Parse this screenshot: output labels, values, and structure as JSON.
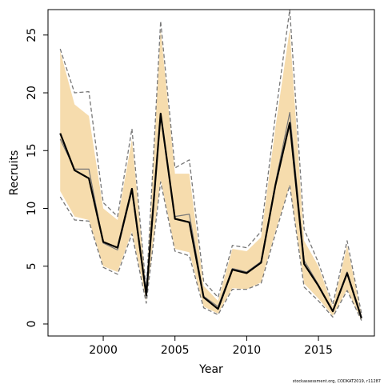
{
  "chart_data": {
    "type": "line",
    "x_label": "Year",
    "y_label": "Recruits",
    "footnote": "stockassessment.org, CODKAT2019, r11287",
    "x": [
      1997,
      1998,
      1999,
      2000,
      2001,
      2002,
      2003,
      2004,
      2005,
      2006,
      2007,
      2008,
      2009,
      2010,
      2011,
      2012,
      2013,
      2014,
      2015,
      2016,
      2017,
      2018
    ],
    "band": {
      "color": "#f6dcad",
      "upper": [
        23.6,
        19.0,
        18.0,
        10.0,
        9.0,
        16.0,
        3.0,
        25.5,
        13.0,
        13.0,
        3.3,
        2.0,
        6.5,
        6.3,
        7.5,
        17.0,
        25.5,
        7.2,
        5.0,
        1.5,
        6.8,
        0.8
      ],
      "lower": [
        11.5,
        9.3,
        9.0,
        5.0,
        4.5,
        8.0,
        2.0,
        12.5,
        6.5,
        6.2,
        1.5,
        0.9,
        3.1,
        3.0,
        3.6,
        8.0,
        12.0,
        3.5,
        2.2,
        0.7,
        3.0,
        0.3
      ]
    },
    "series": [
      {
        "color": "#777777",
        "style": "dashed",
        "values": [
          23.8,
          20.0,
          20.1,
          10.5,
          9.3,
          16.9,
          2.8,
          26.2,
          13.5,
          14.2,
          3.7,
          2.3,
          6.8,
          6.6,
          8.0,
          18.0,
          27.2,
          8.2,
          5.3,
          1.7,
          7.2,
          0.9
        ]
      },
      {
        "color": "#777777",
        "style": "dashed",
        "values": [
          11.0,
          9.0,
          8.9,
          4.9,
          4.3,
          7.8,
          1.8,
          12.3,
          6.3,
          5.9,
          1.4,
          0.8,
          3.0,
          3.0,
          3.5,
          7.8,
          12.0,
          3.2,
          2.0,
          0.6,
          2.9,
          0.3
        ]
      },
      {
        "color": "#777777",
        "style": "thin",
        "values": [
          16.0,
          13.4,
          13.4,
          7.0,
          6.4,
          11.5,
          2.3,
          18.0,
          9.3,
          9.5,
          2.4,
          1.5,
          4.8,
          4.5,
          5.4,
          12.2,
          18.3,
          5.5,
          3.4,
          1.1,
          4.5,
          0.6
        ]
      },
      {
        "color": "#000000",
        "style": "thick",
        "values": [
          16.5,
          13.3,
          12.6,
          7.1,
          6.6,
          11.7,
          2.5,
          18.2,
          9.1,
          8.8,
          2.3,
          1.3,
          4.7,
          4.4,
          5.3,
          12.0,
          17.4,
          5.2,
          3.3,
          1.1,
          4.4,
          0.5
        ]
      }
    ],
    "xlim": [
      1996.15,
      2018.9
    ],
    "ylim": [
      -1.04,
      27.2
    ],
    "xticks": [
      2000,
      2005,
      2010,
      2015
    ],
    "yticks": [
      0,
      5,
      10,
      15,
      20,
      25
    ]
  }
}
